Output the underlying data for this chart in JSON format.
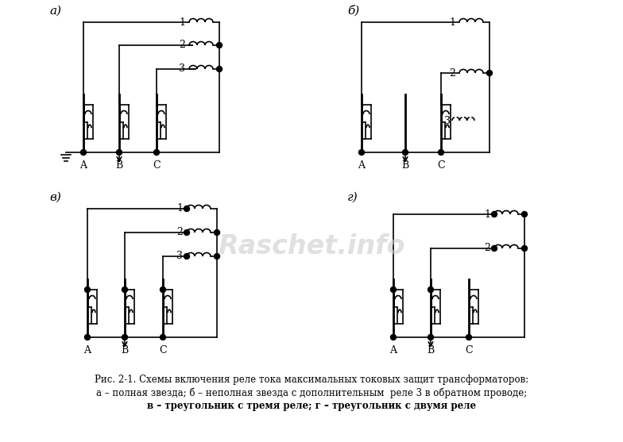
{
  "caption_line1": "Рис. 2-1. Схемы включения реле тока максимальных токовых защит трансформаторов:",
  "caption_line2": "а – полная звезда; б – неполная звезда с дополнительным  реле 3 в обратном проводе;",
  "caption_line3": "в – треугольник с тремя реле; г – треугольник с двумя реле",
  "bg_color": "#ffffff",
  "line_color": "#000000",
  "watermark": "Raschet.info",
  "watermark_color": "#cccccc"
}
